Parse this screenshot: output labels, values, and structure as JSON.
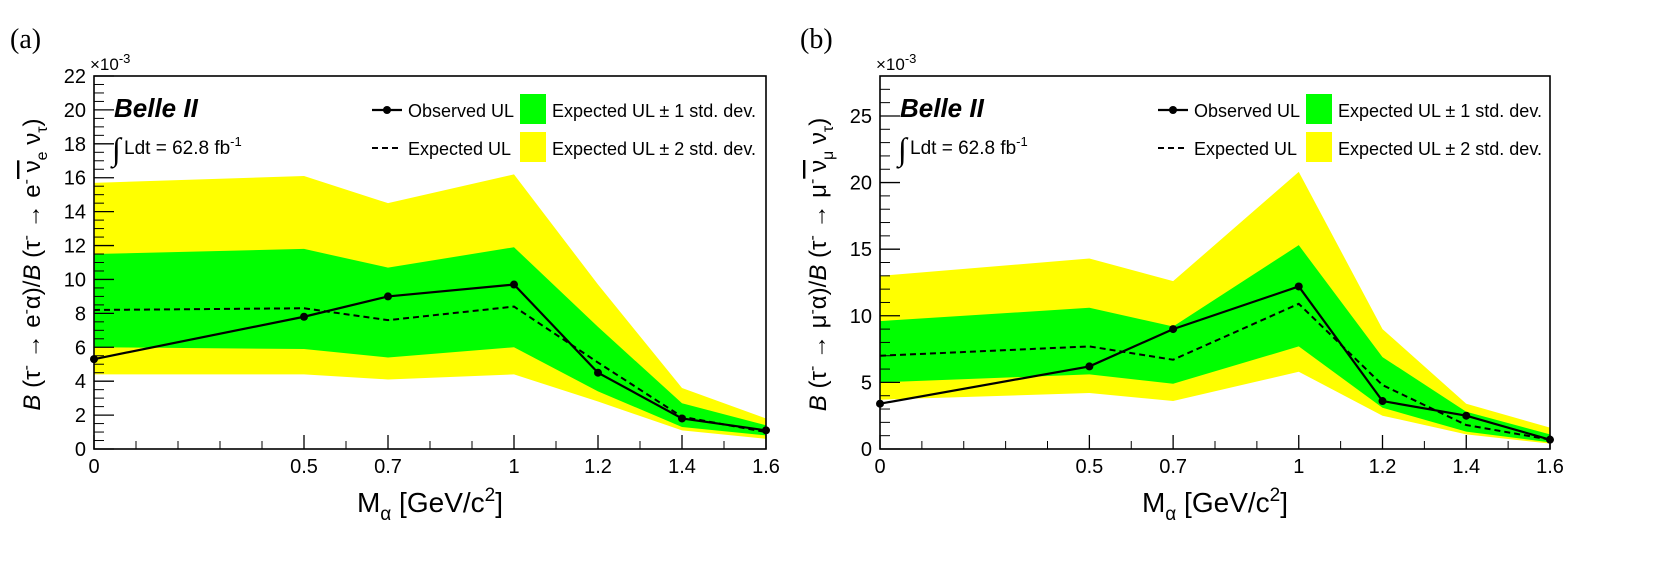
{
  "colors": {
    "band1": "#00ff00",
    "band2": "#ffff00",
    "observed": "#000000",
    "expected": "#000000"
  },
  "chart_data": [
    {
      "type": "line",
      "panel_label": "(a)",
      "experiment_label": "Belle II",
      "lumi_label": "Ldt = 62.8 fb",
      "lumi_exponent": "-1",
      "xlabel": "M",
      "xlabel_sub": "α",
      "xlabel_unit": " [GeV/c",
      "xlabel_unit_sup": "2",
      "xlabel_unit_end": "]",
      "y_exponent_label": "×10",
      "y_exponent_sup": "-3",
      "xlim": [
        0,
        1.6
      ],
      "ylim": [
        0,
        22
      ],
      "xticks": [
        0,
        0.5,
        0.7,
        1,
        1.2,
        1.4,
        1.6
      ],
      "xtick_labels": [
        "0",
        "0.5",
        "0.7",
        "1",
        "1.2",
        "1.4",
        "1.6"
      ],
      "yticks": [
        0,
        2,
        4,
        6,
        8,
        10,
        12,
        14,
        16,
        18,
        20,
        22
      ],
      "ytick_labels": [
        "0",
        "2",
        "4",
        "6",
        "8",
        "10",
        "12",
        "14",
        "16",
        "18",
        "20",
        "22"
      ],
      "x": [
        0,
        0.5,
        0.7,
        1,
        1.2,
        1.4,
        1.6
      ],
      "observed": [
        5.3,
        7.8,
        9.0,
        9.7,
        4.5,
        1.8,
        1.1
      ],
      "expected": [
        8.2,
        8.3,
        7.6,
        8.4,
        5.1,
        1.9,
        1.0
      ],
      "band1_low": [
        6.0,
        5.9,
        5.4,
        6.0,
        3.4,
        1.3,
        0.8
      ],
      "band1_high": [
        11.5,
        11.8,
        10.7,
        11.9,
        7.2,
        2.7,
        1.4
      ],
      "band2_low": [
        4.4,
        4.4,
        4.1,
        4.4,
        2.8,
        1.1,
        0.6
      ],
      "band2_high": [
        15.7,
        16.1,
        14.5,
        16.2,
        9.7,
        3.6,
        1.8
      ],
      "legend": {
        "observed": "Observed UL",
        "expected": "Expected UL",
        "band1": "Expected UL ± 1 std. dev.",
        "band2": "Expected UL ± 2 std. dev."
      },
      "ylabel": {
        "b1": "B",
        "p1": " (τ",
        "s1": "-",
        "p2": " → e",
        "s2": "-",
        "p3": "α)/",
        "b2": "B",
        "p4": " (τ",
        "s3": "-",
        "p5": " → e",
        "s4": "-",
        "p6": " ν",
        "sub1": "e",
        "p7": " ν",
        "sub2": "τ",
        "p8": ")"
      }
    },
    {
      "type": "line",
      "panel_label": "(b)",
      "experiment_label": "Belle II",
      "lumi_label": "Ldt = 62.8 fb",
      "lumi_exponent": "-1",
      "xlabel": "M",
      "xlabel_sub": "α",
      "xlabel_unit": " [GeV/c",
      "xlabel_unit_sup": "2",
      "xlabel_unit_end": "]",
      "y_exponent_label": "×10",
      "y_exponent_sup": "-3",
      "xlim": [
        0,
        1.6
      ],
      "ylim": [
        0,
        28
      ],
      "xticks": [
        0,
        0.5,
        0.7,
        1,
        1.2,
        1.4,
        1.6
      ],
      "xtick_labels": [
        "0",
        "0.5",
        "0.7",
        "1",
        "1.2",
        "1.4",
        "1.6"
      ],
      "yticks": [
        0,
        5,
        10,
        15,
        20,
        25
      ],
      "ytick_labels": [
        "0",
        "5",
        "10",
        "15",
        "20",
        "25"
      ],
      "x": [
        0,
        0.5,
        0.7,
        1,
        1.2,
        1.4,
        1.6
      ],
      "observed": [
        3.4,
        6.2,
        9.0,
        12.2,
        3.6,
        2.5,
        0.7
      ],
      "expected": [
        7.0,
        7.7,
        6.7,
        10.9,
        4.8,
        1.8,
        0.7
      ],
      "band1_low": [
        5.0,
        5.6,
        4.9,
        7.7,
        3.1,
        1.3,
        0.5
      ],
      "band1_high": [
        9.6,
        10.6,
        9.2,
        15.3,
        6.9,
        2.8,
        1.1
      ],
      "band2_low": [
        3.7,
        4.2,
        3.6,
        5.8,
        2.5,
        1.1,
        0.4
      ],
      "band2_high": [
        13.0,
        14.3,
        12.6,
        20.8,
        9.0,
        3.4,
        1.6
      ],
      "legend": {
        "observed": "Observed UL",
        "expected": "Expected UL",
        "band1": "Expected UL ± 1 std. dev.",
        "band2": "Expected UL ± 2 std. dev."
      },
      "ylabel": {
        "b1": "B",
        "p1": " (τ",
        "s1": "-",
        "p2": " → μ",
        "s2": "-",
        "p3": "α)/",
        "b2": "B",
        "p4": " (τ",
        "s3": "-",
        "p5": " → μ",
        "s4": "-",
        "p6": " ν",
        "sub1": "μ",
        "p7": " ν",
        "sub2": "τ",
        "p8": ")"
      }
    }
  ]
}
